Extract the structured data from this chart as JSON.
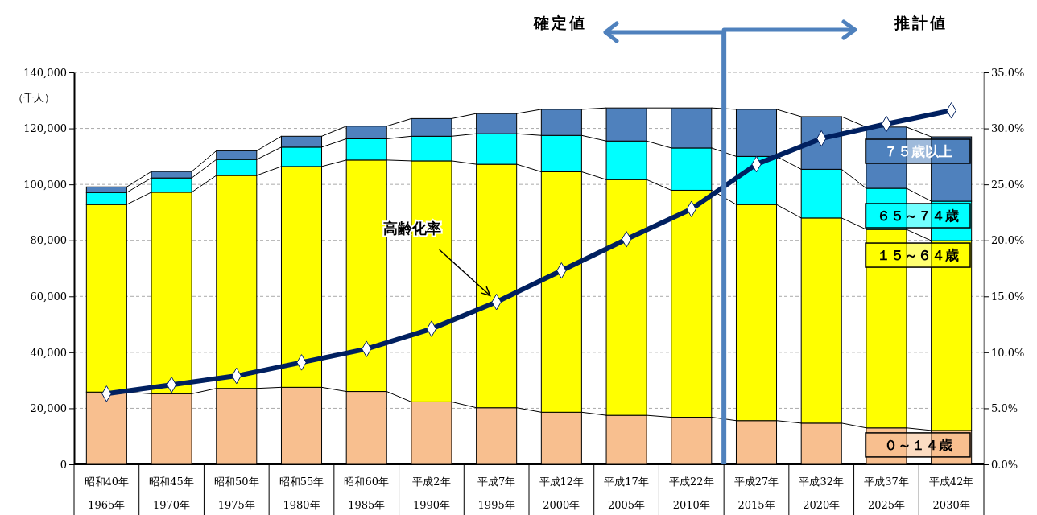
{
  "chart_data": {
    "type": "bar",
    "stacked": true,
    "categories": [
      "昭和40年\n1965年",
      "昭和45年\n1970年",
      "昭和50年\n1975年",
      "昭和55年\n1980年",
      "昭和60年\n1985年",
      "平成2年\n1990年",
      "平成7年\n1995年",
      "平成12年\n2000年",
      "平成17年\n2005年",
      "平成22年\n2010年",
      "平成27年\n2015年",
      "平成32年\n2020年",
      "平成37年\n2025年",
      "平成42年\n2030年"
    ],
    "series": [
      {
        "name": "０～１４歳",
        "color": "#f8bf8f",
        "values": [
          25800,
          25200,
          27100,
          27500,
          26000,
          22300,
          20200,
          18600,
          17500,
          16800,
          15600,
          14700,
          13000,
          12100
        ]
      },
      {
        "name": "１５～６４歳",
        "color": "#ffff00",
        "values": [
          67000,
          72000,
          76100,
          78900,
          82700,
          86100,
          87000,
          85900,
          84200,
          81100,
          77200,
          73300,
          70900,
          67800
        ]
      },
      {
        "name": "６５～７４歳",
        "color": "#00ffff",
        "values": [
          4300,
          5100,
          5700,
          6900,
          7600,
          8800,
          10900,
          13000,
          13800,
          15100,
          17200,
          17400,
          14700,
          14100
        ]
      },
      {
        "name": "７５歳以上",
        "color": "#4f81bd",
        "values": [
          2000,
          2300,
          3100,
          3900,
          4500,
          6300,
          7200,
          9300,
          11800,
          14300,
          16800,
          18800,
          21900,
          23000
        ]
      },
      {
        "name": "高齢化率",
        "type": "line",
        "axis": "y2",
        "color": "#002060",
        "marker": "diamond",
        "line_style": "solid",
        "values": [
          6.3,
          7.1,
          7.9,
          9.1,
          10.3,
          12.1,
          14.5,
          17.3,
          20.1,
          22.8,
          26.8,
          29.1,
          30.4,
          31.6
        ]
      }
    ],
    "ylabel": "（千人）",
    "ylim": [
      0,
      140000
    ],
    "yticks": [
      0,
      {
        "value": 20000,
        "label": "20,000"
      },
      {
        "value": 40000,
        "label": "40,000"
      },
      {
        "value": 60000,
        "label": "60,000"
      },
      {
        "value": 80000,
        "label": "80,000"
      },
      {
        "value": 100000,
        "label": "100,000"
      },
      {
        "value": 120000,
        "label": "120,000"
      },
      {
        "value": 140000,
        "label": "140,000"
      }
    ],
    "y2lim": [
      0,
      35
    ],
    "y2ticks": [
      {
        "value": 0,
        "label": "0.0%"
      },
      {
        "value": 5,
        "label": "5.0%"
      },
      {
        "value": 10,
        "label": "10.0%"
      },
      {
        "value": 15,
        "label": "15.0%"
      },
      {
        "value": 20,
        "label": "20.0%"
      },
      {
        "value": 25,
        "label": "25.0%"
      },
      {
        "value": 30,
        "label": "30.0%"
      },
      {
        "value": 35,
        "label": "35.0%"
      }
    ],
    "annotations": [
      "確定値",
      "推計値"
    ],
    "ref_lines": [
      {
        "axis": "x",
        "value": "平成27年\n2015年",
        "color": "#4f81bd"
      }
    ],
    "grid": "y",
    "legend": "right"
  }
}
